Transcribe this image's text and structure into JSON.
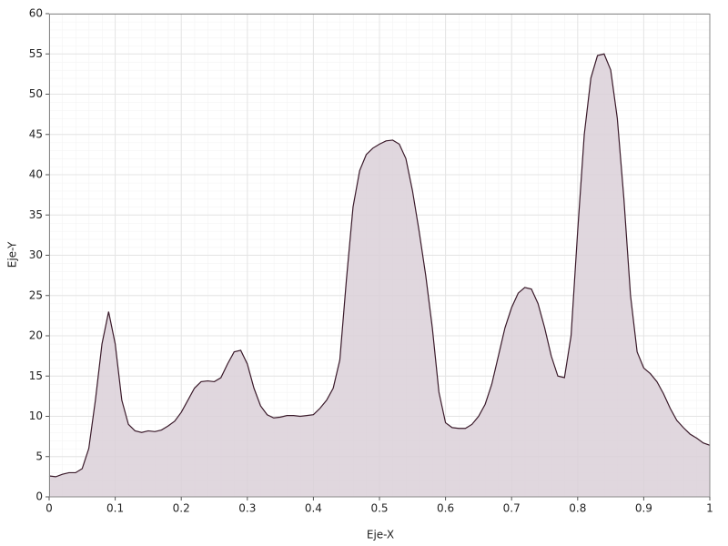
{
  "chart_data": {
    "type": "area",
    "xlabel": "Eje-X",
    "ylabel": "Eje-Y",
    "x": [
      0,
      0.01,
      0.02,
      0.03,
      0.04,
      0.05,
      0.06,
      0.07,
      0.08,
      0.09,
      0.1,
      0.11,
      0.12,
      0.13,
      0.14,
      0.15,
      0.16,
      0.17,
      0.18,
      0.19,
      0.2,
      0.21,
      0.22,
      0.23,
      0.24,
      0.25,
      0.26,
      0.27,
      0.28,
      0.29,
      0.3,
      0.31,
      0.32,
      0.33,
      0.34,
      0.35,
      0.36,
      0.37,
      0.38,
      0.39,
      0.4,
      0.41,
      0.42,
      0.43,
      0.44,
      0.45,
      0.46,
      0.47,
      0.48,
      0.49,
      0.5,
      0.51,
      0.52,
      0.53,
      0.54,
      0.55,
      0.56,
      0.57,
      0.58,
      0.59,
      0.6,
      0.61,
      0.62,
      0.63,
      0.64,
      0.65,
      0.66,
      0.67,
      0.68,
      0.69,
      0.7,
      0.71,
      0.72,
      0.73,
      0.74,
      0.75,
      0.76,
      0.77,
      0.78,
      0.79,
      0.8,
      0.81,
      0.82,
      0.83,
      0.84,
      0.85,
      0.86,
      0.87,
      0.88,
      0.89,
      0.9,
      0.91,
      0.92,
      0.93,
      0.94,
      0.95,
      0.96,
      0.97,
      0.98,
      0.99,
      1
    ],
    "series": [
      {
        "color": "#dbd0d8",
        "line_color": "#3a1a2a",
        "values": [
          2.6,
          2.5,
          2.8,
          3.0,
          3.0,
          3.5,
          6,
          12,
          19,
          23,
          19,
          12,
          9,
          8.2,
          8,
          8.2,
          8.1,
          8.3,
          8.8,
          9.4,
          10.5,
          12,
          13.5,
          14.3,
          14.4,
          14.3,
          14.8,
          16.5,
          18,
          18.2,
          16.5,
          13.5,
          11.3,
          10.2,
          9.8,
          9.9,
          10.1,
          10.1,
          10,
          10.1,
          10.2,
          11,
          12,
          13.5,
          17,
          27,
          36,
          40.5,
          42.5,
          43.3,
          43.8,
          44.2,
          44.3,
          43.8,
          42,
          38,
          33,
          27.5,
          21,
          13,
          9.2,
          8.6,
          8.5,
          8.5,
          9,
          10,
          11.5,
          14,
          17.5,
          21,
          23.5,
          25.3,
          26,
          25.8,
          24,
          21,
          17.5,
          15,
          14.8,
          20,
          33,
          45,
          52,
          54.8,
          55,
          53,
          47,
          37,
          25,
          18,
          16,
          15.3,
          14.3,
          12.8,
          11,
          9.5,
          8.6,
          7.8,
          7.3,
          6.7,
          6.4
        ]
      }
    ],
    "xlim": [
      0,
      1
    ],
    "xticks": [
      0,
      0.1,
      0.2,
      0.3,
      0.4,
      0.5,
      0.6,
      0.7,
      0.8,
      0.9,
      1
    ],
    "ylim": [
      0,
      60
    ],
    "yticks": [
      0,
      5,
      10,
      15,
      20,
      25,
      30,
      35,
      40,
      45,
      50,
      55,
      60
    ],
    "grid": true
  }
}
